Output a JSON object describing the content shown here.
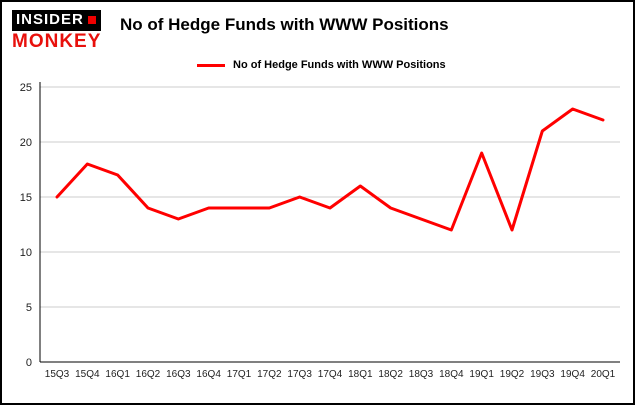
{
  "logo": {
    "line1": "INSIDER",
    "line2": "MONKEY"
  },
  "header": {
    "title": "No of Hedge Funds with WWW Positions"
  },
  "legend": {
    "label": "No of Hedge Funds with WWW Positions"
  },
  "chart_data": {
    "type": "line",
    "title": "No of Hedge Funds with WWW Positions",
    "series_name": "No of Hedge Funds with WWW Positions",
    "categories": [
      "15Q3",
      "15Q4",
      "16Q1",
      "16Q2",
      "16Q3",
      "16Q4",
      "17Q1",
      "17Q2",
      "17Q3",
      "17Q4",
      "18Q1",
      "18Q2",
      "18Q3",
      "18Q4",
      "19Q1",
      "19Q2",
      "19Q3",
      "19Q4",
      "20Q1"
    ],
    "values": [
      15,
      18,
      17,
      14,
      13,
      14,
      14,
      14,
      15,
      14,
      16,
      14,
      13,
      12,
      19,
      12,
      21,
      23,
      22
    ],
    "xlabel": "",
    "ylabel": "",
    "ylim": [
      0,
      25
    ],
    "yticks": [
      0,
      5,
      10,
      15,
      20,
      25
    ],
    "grid": true,
    "legend_position": "top",
    "line_color": "#ff0000",
    "grid_color": "#cccccc",
    "axis_color": "#000000"
  }
}
